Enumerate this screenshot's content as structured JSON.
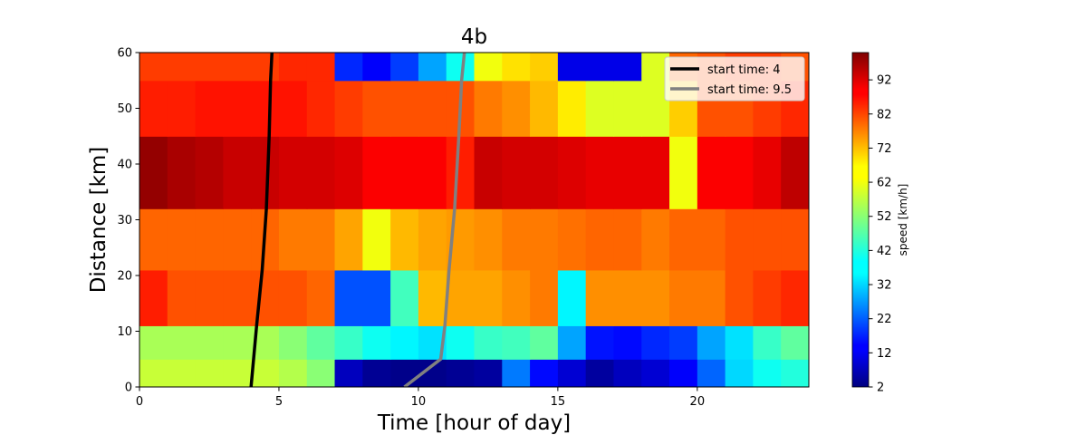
{
  "chart_data": {
    "type": "heatmap",
    "title": "4b",
    "xlabel": "Time [hour of day]",
    "ylabel": "Distance [km]",
    "xlim": [
      0,
      24
    ],
    "ylim": [
      0,
      60
    ],
    "x_ticks": [
      0,
      5,
      10,
      15,
      20
    ],
    "y_ticks": [
      0,
      10,
      20,
      30,
      40,
      50,
      60
    ],
    "colormap": "jet",
    "colorbar": {
      "label": "speed [km/h]",
      "range": [
        2,
        100
      ],
      "ticks": [
        2,
        12,
        22,
        32,
        42,
        52,
        62,
        72,
        82,
        92
      ]
    },
    "grid": false,
    "legend_placement": "top-right",
    "heatmap": {
      "time_bins": [
        0,
        1,
        2,
        3,
        4,
        5,
        6,
        7,
        8,
        9,
        10,
        11,
        12,
        13,
        14,
        15,
        16,
        17,
        18,
        19,
        20,
        21,
        22,
        23,
        24
      ],
      "distance_bins": [
        0,
        5,
        11,
        21,
        32,
        45,
        55,
        60
      ],
      "speeds": [
        [
          58,
          58,
          58,
          58,
          58,
          56,
          52,
          8,
          4,
          3,
          3,
          4,
          5,
          26,
          15,
          10,
          5,
          8,
          10,
          14,
          24,
          35,
          40,
          42
        ],
        [
          55,
          55,
          55,
          55,
          55,
          52,
          48,
          44,
          40,
          38,
          36,
          40,
          44,
          45,
          48,
          30,
          16,
          15,
          18,
          20,
          30,
          36,
          44,
          48
        ],
        [
          85,
          80,
          80,
          80,
          80,
          80,
          78,
          22,
          22,
          45,
          70,
          72,
          72,
          74,
          76,
          38,
          74,
          74,
          74,
          76,
          76,
          80,
          82,
          84
        ],
        [
          78,
          78,
          78,
          78,
          78,
          76,
          76,
          72,
          62,
          70,
          72,
          73,
          74,
          76,
          76,
          77,
          78,
          78,
          76,
          78,
          78,
          80,
          80,
          80
        ],
        [
          98,
          96,
          95,
          93,
          93,
          92,
          92,
          91,
          88,
          88,
          88,
          85,
          93,
          92,
          92,
          91,
          90,
          90,
          90,
          62,
          88,
          88,
          90,
          94
        ],
        [
          85,
          85,
          86,
          86,
          86,
          86,
          84,
          82,
          80,
          80,
          80,
          80,
          76,
          74,
          70,
          65,
          60,
          60,
          60,
          68,
          80,
          80,
          82,
          84
        ],
        [
          82,
          82,
          82,
          82,
          82,
          84,
          84,
          18,
          14,
          20,
          30,
          40,
          62,
          66,
          68,
          12,
          12,
          12,
          60,
          78,
          80,
          82,
          82,
          80
        ]
      ]
    },
    "series": [
      {
        "name": "start time: 4",
        "color": "#000000",
        "points": [
          [
            4.0,
            0
          ],
          [
            4.2,
            11
          ],
          [
            4.4,
            21
          ],
          [
            4.55,
            32
          ],
          [
            4.65,
            45
          ],
          [
            4.7,
            55
          ],
          [
            4.75,
            60
          ]
        ]
      },
      {
        "name": "start time: 9.5",
        "color": "#808080",
        "points": [
          [
            9.5,
            0
          ],
          [
            10.8,
            5
          ],
          [
            10.95,
            11
          ],
          [
            11.1,
            21
          ],
          [
            11.3,
            32
          ],
          [
            11.45,
            45
          ],
          [
            11.55,
            55
          ],
          [
            11.65,
            60
          ]
        ]
      }
    ]
  }
}
